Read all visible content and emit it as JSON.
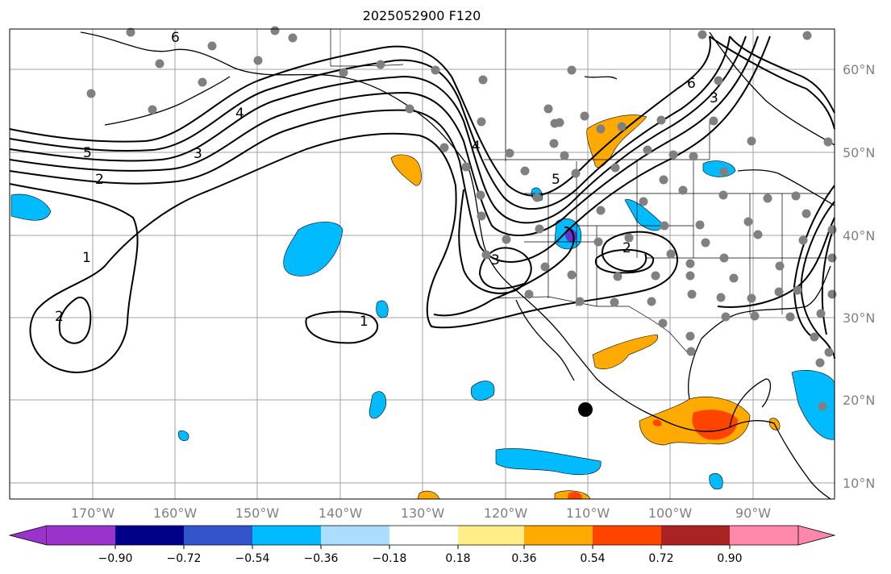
{
  "title": "2025052900 F120",
  "map": {
    "lat_labels": [
      "60°N",
      "50°N",
      "40°N",
      "30°N",
      "20°N",
      "10°N"
    ],
    "lon_labels": [
      "170°W",
      "160°W",
      "150°W",
      "140°W",
      "130°W",
      "120°W",
      "110°W",
      "100°W",
      "90°W"
    ],
    "contour_labels": [
      "6",
      "4",
      "5",
      "3",
      "2",
      "1",
      "2",
      "6",
      "3",
      "4",
      "5",
      "2",
      "3",
      "1"
    ]
  },
  "colorbar": {
    "ticks": [
      "−0.90",
      "−0.72",
      "−0.54",
      "−0.36",
      "−0.18",
      "0.18",
      "0.36",
      "0.54",
      "0.72",
      "0.90"
    ],
    "colors": [
      "#9933cc",
      "#000088",
      "#3355cc",
      "#00bbff",
      "#aaddff",
      "#ffffff",
      "#ffee88",
      "#ffaa00",
      "#ff4400",
      "#aa2222",
      "#ff88aa"
    ]
  },
  "colors": {
    "positive_mid": "#ffaa00",
    "positive_high": "#ff4400",
    "negative_mid": "#00bbff",
    "grid": "#999999",
    "station_dot": "#808080"
  }
}
